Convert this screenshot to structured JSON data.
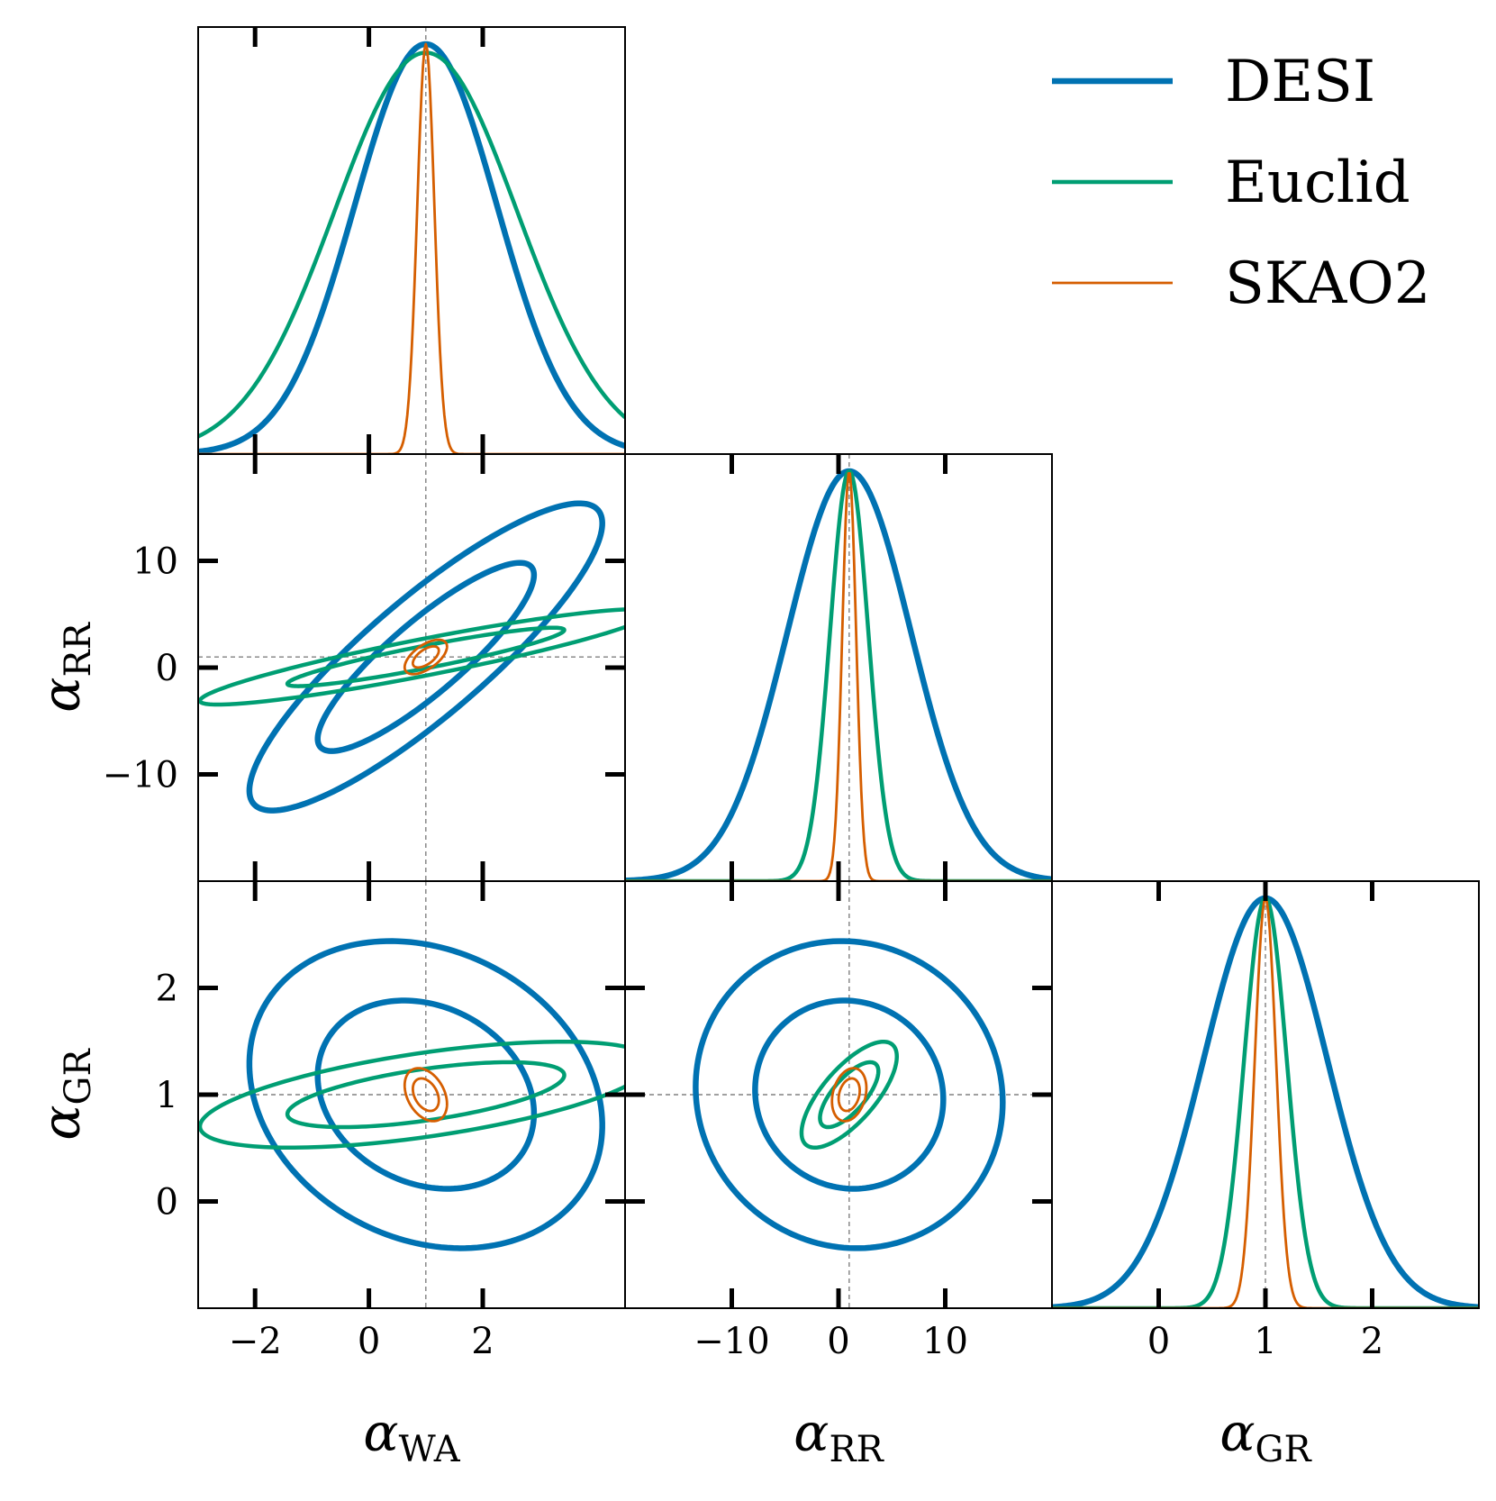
{
  "chart_data": {
    "type": "corner",
    "colors": {
      "DESI": "#0072b2",
      "Euclid": "#009e73",
      "SKAO2": "#d55e00",
      "reference": "#808080"
    },
    "legend": {
      "position": "top-right",
      "entries": [
        {
          "name": "DESI",
          "color": "#0072b2"
        },
        {
          "name": "Euclid",
          "color": "#009e73"
        },
        {
          "name": "SKAO2",
          "color": "#d55e00"
        }
      ]
    },
    "parameters": [
      {
        "key": "WA",
        "symbol": "α",
        "subscript": "WA",
        "fiducial": 1,
        "range": [
          -3.0,
          4.5
        ],
        "ticks": [
          -2,
          0,
          2
        ],
        "tick_labels": [
          "−2",
          "0",
          "2"
        ]
      },
      {
        "key": "RR",
        "symbol": "α",
        "subscript": "RR",
        "fiducial": 1,
        "range": [
          -20,
          20
        ],
        "ticks": [
          -10,
          0,
          10
        ],
        "tick_labels": [
          "−10",
          "0",
          "10"
        ]
      },
      {
        "key": "GR",
        "symbol": "α",
        "subscript": "GR",
        "fiducial": 1,
        "range": [
          -1.0,
          3.0
        ],
        "ticks": [
          0,
          1,
          2
        ],
        "tick_labels": [
          "0",
          "1",
          "2"
        ]
      }
    ],
    "forecasts": [
      {
        "name": "DESI",
        "sigma": {
          "WA": 1.25,
          "RR": 5.8,
          "GR": 0.58
        },
        "corr": {
          "WA_RR": 0.87,
          "WA_GR": -0.2,
          "RR_GR": -0.05
        },
        "curve_max": {
          "WA": 0.96,
          "RR": 0.96,
          "GR": 0.96
        }
      },
      {
        "name": "Euclid",
        "sigma": {
          "WA": 1.6,
          "RR": 1.8,
          "GR": 0.2
        },
        "corr": {
          "WA_RR": 0.92,
          "WA_GR": 0.6,
          "RR_GR": 0.72
        },
        "curve_max": {
          "WA": 0.94,
          "RR": 0.96,
          "GR": 0.96
        }
      },
      {
        "name": "SKAO2",
        "sigma": {
          "WA": 0.15,
          "RR": 0.65,
          "GR": 0.1
        },
        "corr": {
          "WA_RR": 0.6,
          "WA_GR": -0.35,
          "RR_GR": 0.25
        },
        "curve_max": {
          "WA": 0.96,
          "RR": 0.96,
          "GR": 0.96
        }
      }
    ],
    "contour_levels": [
      "68%",
      "95%"
    ]
  }
}
